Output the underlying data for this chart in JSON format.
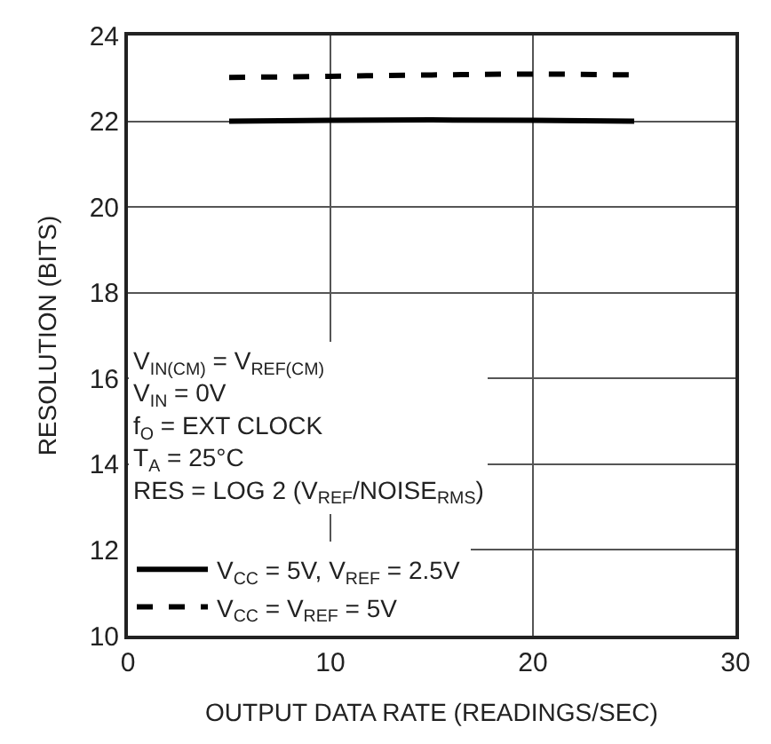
{
  "chart_data": {
    "type": "line",
    "xlabel": "OUTPUT DATA RATE (READINGS/SEC)",
    "ylabel": "RESOLUTION (BITS)",
    "xlim": [
      0,
      30
    ],
    "xticks": [
      0,
      10,
      20,
      30
    ],
    "ylim": [
      10,
      24
    ],
    "yticks": [
      10,
      12,
      14,
      16,
      18,
      20,
      22,
      24
    ],
    "grid": true,
    "legend": "bottom left",
    "marker": "none",
    "series": [
      {
        "name": "V$_{CC}$ = 5V, V$_{REF}$ = 2.5V",
        "color": "#000000",
        "line_style": "solid",
        "x": [
          5,
          10,
          15,
          20,
          25
        ],
        "values": [
          22.0,
          22.02,
          22.03,
          22.02,
          22.0
        ]
      },
      {
        "name": "V$_{CC}$ = V$_{REF}$ = 5V",
        "color": "#000000",
        "line_style": "dashed",
        "x": [
          5,
          10,
          15,
          20,
          25
        ],
        "values": [
          23.02,
          23.05,
          23.08,
          23.1,
          23.08
        ]
      }
    ],
    "annotations": [
      "V$_{IN(CM)}$ = V$_{REF(CM)}$",
      "V$_{IN}$ = 0V",
      "f$_{O}$ = EXT CLOCK",
      "T$_{A}$ = 25°C",
      "RES = LOG 2 (V$_{REF}$/NOISE$_{RMS}$)"
    ]
  }
}
